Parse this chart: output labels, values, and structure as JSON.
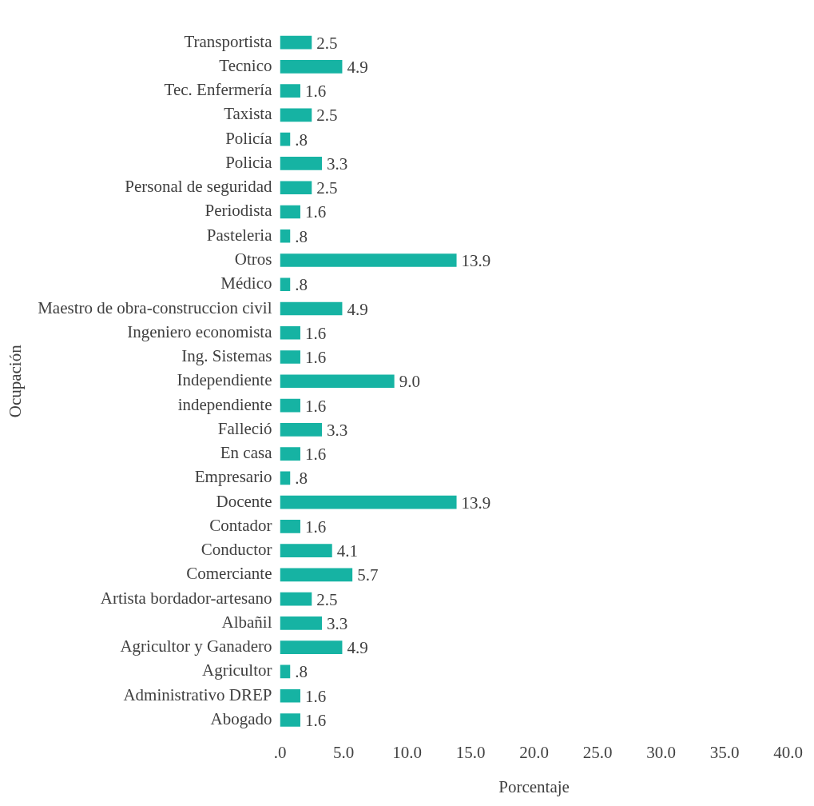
{
  "chart_data": {
    "type": "bar",
    "orientation": "horizontal",
    "xlabel": "Porcentaje",
    "ylabel": "Ocupación",
    "categories": [
      "Transportista",
      "Tecnico",
      "Tec. Enfermería",
      "Taxista",
      "Policía",
      "Policia",
      "Personal de seguridad",
      "Periodista",
      "Pasteleria",
      "Otros",
      "Médico",
      "Maestro de obra-construccion civil",
      "Ingeniero economista",
      "Ing. Sistemas",
      "Independiente",
      "independiente",
      "Falleció",
      "En casa",
      "Empresario",
      "Docente",
      "Contador",
      "Conductor",
      "Comerciante",
      "Artista bordador-artesano",
      "Albañil",
      "Agricultor y Ganadero",
      "Agricultor",
      "Administrativo DREP",
      "Abogado"
    ],
    "values": [
      2.5,
      4.9,
      1.6,
      2.5,
      0.8,
      3.3,
      2.5,
      1.6,
      0.8,
      13.9,
      0.8,
      4.9,
      1.6,
      1.6,
      9.0,
      1.6,
      3.3,
      1.6,
      0.8,
      13.9,
      1.6,
      4.1,
      5.7,
      2.5,
      3.3,
      4.9,
      0.8,
      1.6,
      1.6
    ],
    "value_labels": [
      "2.5",
      "4.9",
      "1.6",
      "2.5",
      ".8",
      "3.3",
      "2.5",
      "1.6",
      ".8",
      "13.9",
      ".8",
      "4.9",
      "1.6",
      "1.6",
      "9.0",
      "1.6",
      "3.3",
      "1.6",
      ".8",
      "13.9",
      "1.6",
      "4.1",
      "5.7",
      "2.5",
      "3.3",
      "4.9",
      ".8",
      "1.6",
      "1.6"
    ],
    "color": "#16b3a3",
    "xlim": [
      0,
      40
    ],
    "xticks": [
      {
        "value": 0,
        "label": ".0"
      },
      {
        "value": 5,
        "label": "5.0"
      },
      {
        "value": 10,
        "label": "10.0"
      },
      {
        "value": 15,
        "label": "15.0"
      },
      {
        "value": 20,
        "label": "20.0"
      },
      {
        "value": 25,
        "label": "25.0"
      },
      {
        "value": 30,
        "label": "30.0"
      },
      {
        "value": 35,
        "label": "35.0"
      },
      {
        "value": 40,
        "label": "40.0"
      }
    ],
    "grid": false,
    "legend": false
  }
}
